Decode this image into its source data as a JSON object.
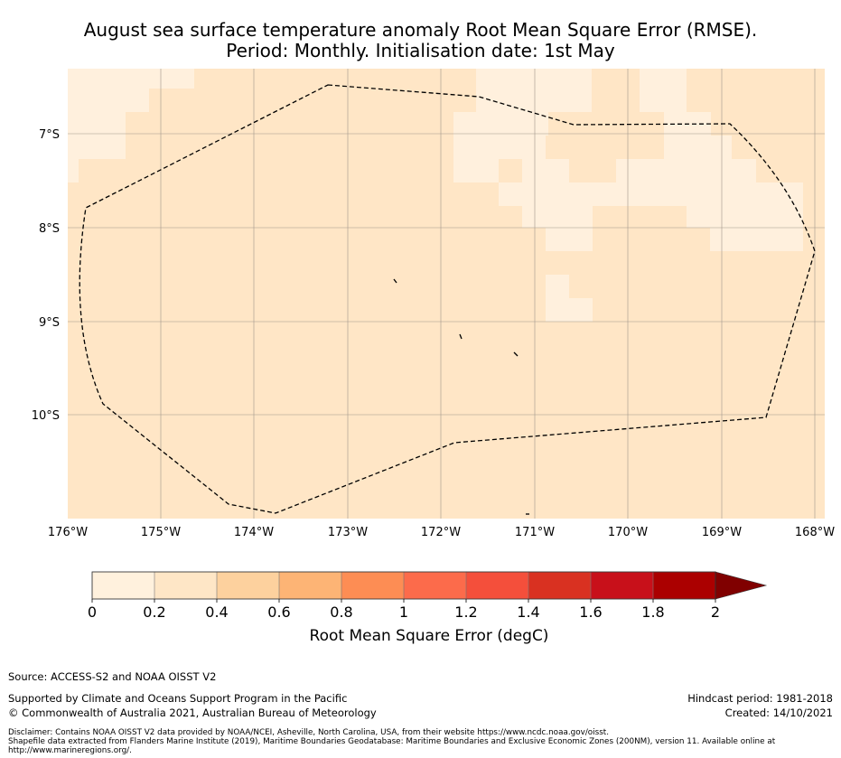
{
  "title": {
    "line1": "August sea surface temperature anomaly Root Mean Square Error (RMSE).",
    "line2": "Period: Monthly. Initialisation date: 1st May"
  },
  "map": {
    "lat_labels": [
      "7°S",
      "8°S",
      "9°S",
      "10°S"
    ],
    "lon_labels": [
      "176°W",
      "175°W",
      "174°W",
      "173°W",
      "172°W",
      "171°W",
      "170°W",
      "169°W",
      "168°W"
    ],
    "colors": {
      "ocean_low": "#fff0dd",
      "ocean_mid": "#ffe6c6",
      "boundary": "#000000",
      "gridline": "#a0958a"
    },
    "eez_boundary": "dashed"
  },
  "colorbar": {
    "ticks": [
      "0",
      "0.2",
      "0.4",
      "0.6",
      "0.8",
      "1",
      "1.2",
      "1.4",
      "1.6",
      "1.8",
      "2"
    ],
    "colors": [
      "#fff1dd",
      "#fee6c6",
      "#fdd19e",
      "#fdb475",
      "#fd8d54",
      "#fc6b4b",
      "#f44f3b",
      "#d93121",
      "#c8101a",
      "#ab0000",
      "#800000"
    ],
    "label": "Root Mean Square Error (degC)",
    "extend": "max"
  },
  "footer": {
    "source": "Source: ACCESS-S2 and NOAA OISST V2",
    "support": "Supported by Climate and Oceans Support Program in the Pacific",
    "copyright": "© Commonwealth of Australia 2021, Australian Bureau of Meteorology",
    "hindcast": "Hindcast period: 1981-2018",
    "created": "Created: 14/10/2021",
    "disclaimer_line1": "Disclaimer: Contains NOAA OISST V2 data provided by NOAA/NCEI, Asheville, North Carolina, USA, from their website https://www.ncdc.noaa.gov/oisst.",
    "disclaimer_line2": "Shapefile data extracted from Flanders Marine Institute (2019), Maritime Boundaries Geodatabase: Maritime Boundaries and Exclusive Economic Zones (200NM), version 11. Available online at",
    "disclaimer_line3": "http://www.marineregions.org/."
  }
}
